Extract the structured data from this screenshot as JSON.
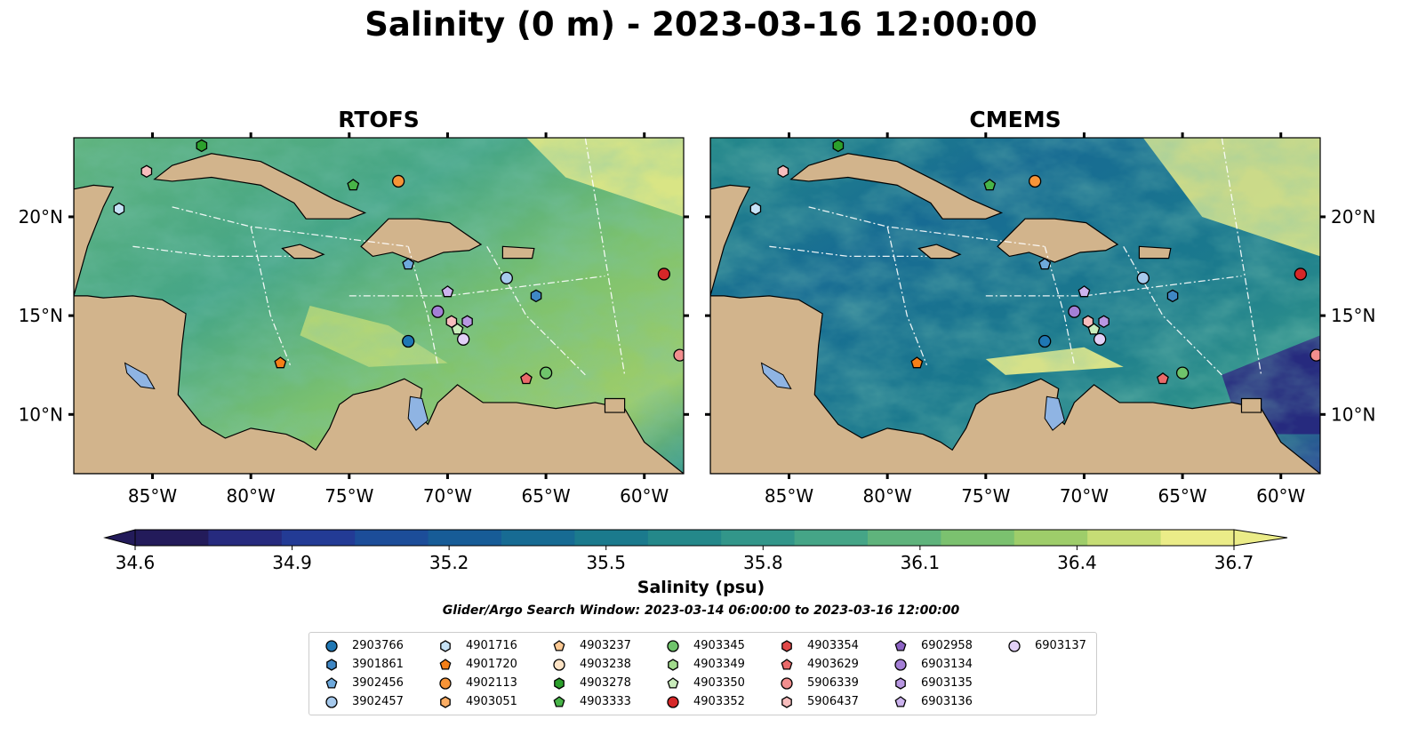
{
  "title": "Salinity (0 m) - 2023-03-16 12:00:00",
  "panels": [
    {
      "id": "rtofs",
      "title": "RTOFS"
    },
    {
      "id": "cmems",
      "title": "CMEMS"
    }
  ],
  "map_extent": {
    "lon": [
      -89.0,
      -58.0
    ],
    "lat": [
      7.0,
      24.0
    ]
  },
  "lon_ticks": [
    "85°W",
    "80°W",
    "75°W",
    "70°W",
    "65°W",
    "60°W"
  ],
  "lon_tick_values": [
    -85,
    -80,
    -75,
    -70,
    -65,
    -60
  ],
  "lat_ticks": [
    "20°N",
    "15°N",
    "10°N"
  ],
  "lat_tick_values": [
    20,
    15,
    10
  ],
  "colorbar": {
    "label": "Salinity (psu)",
    "ticks": [
      "34.6",
      "34.9",
      "35.2",
      "35.5",
      "35.8",
      "36.1",
      "36.4",
      "36.7"
    ],
    "tick_values": [
      34.6,
      34.9,
      35.2,
      35.5,
      35.8,
      36.1,
      36.4,
      36.7
    ],
    "range": [
      34.6,
      36.7
    ],
    "colors": [
      "#231b5a",
      "#262a7e",
      "#233b95",
      "#1c4d99",
      "#175c97",
      "#176b93",
      "#1b7a8d",
      "#24888a",
      "#32968a",
      "#45a587",
      "#5fb37c",
      "#7bc16f",
      "#9ecd6a",
      "#c6dd75",
      "#ebec88"
    ]
  },
  "search_window": "Glider/Argo Search Window: 2023-03-14 06:00:00 to 2023-03-16 12:00:00",
  "land_color": "#d2b48c",
  "lake_color": "#8fb4e3",
  "legend": [
    {
      "id": "2903766",
      "color": "#1f77b4",
      "marker": "circle"
    },
    {
      "id": "3901861",
      "color": "#3f87c4",
      "marker": "hexagon"
    },
    {
      "id": "3902456",
      "color": "#6ea9dc",
      "marker": "pentagon"
    },
    {
      "id": "3902457",
      "color": "#a6c9ec",
      "marker": "circle"
    },
    {
      "id": "4901716",
      "color": "#c6e2f6",
      "marker": "hexagon"
    },
    {
      "id": "4901720",
      "color": "#f57f17",
      "marker": "pentagon"
    },
    {
      "id": "4902113",
      "color": "#f79437",
      "marker": "circle"
    },
    {
      "id": "4903051",
      "color": "#fbad63",
      "marker": "hexagon"
    },
    {
      "id": "4903237",
      "color": "#fdc993",
      "marker": "pentagon"
    },
    {
      "id": "4903238",
      "color": "#fde3c5",
      "marker": "circle"
    },
    {
      "id": "4903278",
      "color": "#2ca02c",
      "marker": "hexagon"
    },
    {
      "id": "4903333",
      "color": "#48b448",
      "marker": "pentagon"
    },
    {
      "id": "4903345",
      "color": "#6fc46b",
      "marker": "circle"
    },
    {
      "id": "4903349",
      "color": "#a1da8c",
      "marker": "hexagon"
    },
    {
      "id": "4903350",
      "color": "#c9ecbb",
      "marker": "pentagon"
    },
    {
      "id": "4903352",
      "color": "#d62728",
      "marker": "circle"
    },
    {
      "id": "4903354",
      "color": "#e04848",
      "marker": "hexagon"
    },
    {
      "id": "4903629",
      "color": "#ea6a6a",
      "marker": "pentagon"
    },
    {
      "id": "5906339",
      "color": "#f28e8e",
      "marker": "circle"
    },
    {
      "id": "5906437",
      "color": "#f7bdbd",
      "marker": "hexagon"
    },
    {
      "id": "6902958",
      "color": "#8c63c4",
      "marker": "pentagon"
    },
    {
      "id": "6903134",
      "color": "#a47fd6",
      "marker": "circle"
    },
    {
      "id": "6903135",
      "color": "#b897e2",
      "marker": "hexagon"
    },
    {
      "id": "6903136",
      "color": "#ccb3ee",
      "marker": "pentagon"
    },
    {
      "id": "6903137",
      "color": "#e2d0f7",
      "marker": "circle"
    }
  ],
  "observations": [
    {
      "id": "5906437",
      "lon": -85.3,
      "lat": 22.3
    },
    {
      "id": "4903278",
      "lon": -82.5,
      "lat": 23.6
    },
    {
      "id": "4901716",
      "lon": -86.7,
      "lat": 20.4
    },
    {
      "id": "4903333",
      "lon": -74.8,
      "lat": 21.6
    },
    {
      "id": "4902113",
      "lon": -72.5,
      "lat": 21.8
    },
    {
      "id": "3902456",
      "lon": -72.0,
      "lat": 17.6
    },
    {
      "id": "6903136",
      "lon": -70.0,
      "lat": 16.2
    },
    {
      "id": "3902457",
      "lon": -67.0,
      "lat": 16.9
    },
    {
      "id": "3901861",
      "lon": -65.5,
      "lat": 16.0
    },
    {
      "id": "4903352",
      "lon": -59.0,
      "lat": 17.1
    },
    {
      "id": "6903134",
      "lon": -70.5,
      "lat": 15.2
    },
    {
      "id": "5906437",
      "lon": -69.8,
      "lat": 14.7
    },
    {
      "id": "6903135",
      "lon": -69.0,
      "lat": 14.7
    },
    {
      "id": "4903350",
      "lon": -69.5,
      "lat": 14.3
    },
    {
      "id": "6903137",
      "lon": -69.2,
      "lat": 13.8
    },
    {
      "id": "2903766",
      "lon": -72.0,
      "lat": 13.7
    },
    {
      "id": "4901720",
      "lon": -78.5,
      "lat": 12.6
    },
    {
      "id": "4903345",
      "lon": -65.0,
      "lat": 12.1
    },
    {
      "id": "4903629",
      "lon": -66.0,
      "lat": 11.8
    },
    {
      "id": "5906339",
      "lon": -58.2,
      "lat": 13.0
    }
  ]
}
